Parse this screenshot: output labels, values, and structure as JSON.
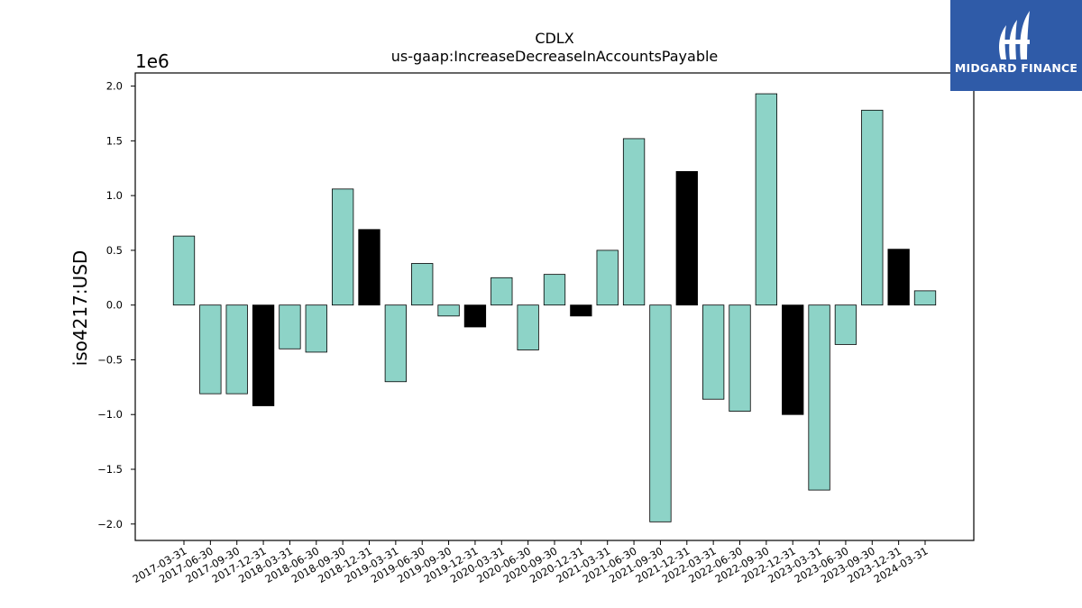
{
  "chart_data": {
    "type": "bar",
    "title": "CDLX",
    "subtitle": "us-gaap:IncreaseDecreaseInAccountsPayable",
    "ylabel": "iso4217:USD",
    "xlabel": "",
    "y_offset_label": "1e6",
    "ylim": [
      -2.15,
      2.12
    ],
    "yticks": [
      -2.0,
      -1.5,
      -1.0,
      -0.5,
      0.0,
      0.5,
      1.0,
      1.5,
      2.0
    ],
    "ytick_labels": [
      "−2.0",
      "−1.5",
      "−1.0",
      "−0.5",
      "0.0",
      "0.5",
      "1.0",
      "1.5",
      "2.0"
    ],
    "value_scale": 1000000,
    "grid": false,
    "colors": {
      "regular": "#8dd3c7",
      "q4": "#000000",
      "edge": "#000000"
    },
    "categories": [
      "2017-03-31",
      "2017-06-30",
      "2017-09-30",
      "2017-12-31",
      "2018-03-31",
      "2018-06-30",
      "2018-09-30",
      "2018-12-31",
      "2019-03-31",
      "2019-06-30",
      "2019-09-30",
      "2019-12-31",
      "2020-03-31",
      "2020-06-30",
      "2020-09-30",
      "2020-12-31",
      "2021-03-31",
      "2021-06-30",
      "2021-09-30",
      "2021-12-31",
      "2022-03-31",
      "2022-06-30",
      "2022-09-30",
      "2022-12-31",
      "2023-03-31",
      "2023-06-30",
      "2023-09-30",
      "2023-12-31",
      "2024-03-31"
    ],
    "values": [
      0.63,
      -0.81,
      -0.81,
      -0.92,
      -0.4,
      -0.43,
      1.06,
      0.69,
      -0.7,
      0.38,
      -0.1,
      -0.2,
      0.25,
      -0.41,
      0.28,
      -0.1,
      0.5,
      1.52,
      -1.98,
      1.22,
      -0.86,
      -0.97,
      1.93,
      -1.0,
      -1.69,
      -0.36,
      1.78,
      0.51,
      0.13
    ]
  },
  "logo": {
    "text": "MIDGARD FINANCE",
    "background": "#2f5ba8"
  }
}
